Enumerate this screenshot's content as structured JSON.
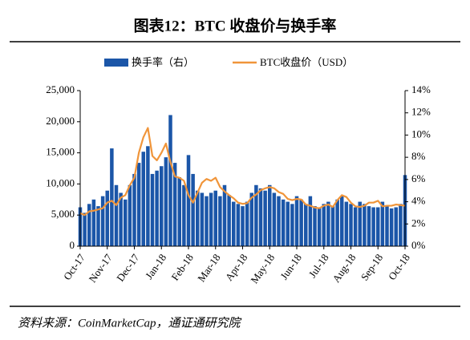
{
  "chart_data": {
    "type": "bar_line",
    "title": "图表12：BTC 收盘价与换手率",
    "source": "资料来源：CoinMarketCap，通证通研究院",
    "categories": [
      "Oct-17",
      null,
      null,
      null,
      null,
      null,
      "Nov-17",
      null,
      null,
      null,
      null,
      null,
      "Dec-17",
      null,
      null,
      null,
      null,
      null,
      "Jan-18",
      null,
      null,
      null,
      null,
      null,
      "Feb-18",
      null,
      null,
      null,
      null,
      null,
      "Mar-18",
      null,
      null,
      null,
      null,
      null,
      "Apr-18",
      null,
      null,
      null,
      null,
      null,
      "May-18",
      null,
      null,
      null,
      null,
      null,
      "Jun-18",
      null,
      null,
      null,
      null,
      null,
      "Jul-18",
      null,
      null,
      null,
      null,
      null,
      "Aug-18",
      null,
      null,
      null,
      null,
      null,
      "Sep-18",
      null,
      null,
      null,
      null,
      null,
      "Oct-18"
    ],
    "series": [
      {
        "name": "换手率（右）",
        "type": "bar",
        "axis": "y2",
        "color": "#1b56a8",
        "values": [
          3.5,
          3.0,
          3.8,
          4.2,
          3.6,
          4.5,
          5.0,
          8.8,
          5.5,
          4.8,
          4.2,
          5.5,
          6.5,
          7.5,
          8.5,
          9.0,
          6.5,
          6.8,
          7.2,
          8.0,
          11.8,
          7.5,
          6.2,
          5.5,
          8.2,
          6.5,
          5.0,
          4.8,
          4.5,
          4.8,
          5.0,
          4.5,
          5.5,
          4.6,
          4.0,
          3.8,
          3.6,
          4.0,
          4.8,
          5.5,
          5.2,
          5.0,
          5.5,
          4.8,
          4.5,
          4.2,
          4.0,
          3.8,
          4.5,
          4.2,
          3.8,
          4.5,
          3.6,
          3.5,
          3.8,
          4.0,
          3.6,
          4.2,
          4.5,
          4.0,
          3.8,
          3.5,
          4.0,
          3.8,
          3.6,
          3.5,
          3.5,
          4.0,
          3.6,
          3.4,
          3.5,
          3.8,
          6.4
        ]
      },
      {
        "name": "BTC收盘价（USD）",
        "type": "line",
        "axis": "y",
        "color": "#f0953a",
        "values": [
          5300,
          5000,
          5600,
          5700,
          5900,
          6100,
          7000,
          7300,
          6600,
          7800,
          8200,
          9800,
          11000,
          15000,
          17500,
          19000,
          14500,
          13800,
          15000,
          16500,
          13500,
          11200,
          11000,
          10500,
          8200,
          7000,
          8600,
          10200,
          10800,
          10500,
          11000,
          9500,
          8800,
          8200,
          7700,
          7000,
          6800,
          6900,
          7800,
          8300,
          9000,
          9300,
          9500,
          9300,
          8700,
          8400,
          7600,
          7400,
          7600,
          7500,
          6700,
          6500,
          6200,
          6100,
          6500,
          6700,
          6300,
          7400,
          8200,
          7900,
          7000,
          6400,
          6300,
          6500,
          7000,
          7000,
          7300,
          6400,
          6500,
          6500,
          6700,
          6600,
          6500
        ]
      }
    ],
    "ylim": [
      0,
      25000
    ],
    "yticks": [
      0,
      {
        "value": 5000,
        "label": "5,000"
      },
      {
        "value": 10000,
        "label": "10,000"
      },
      {
        "value": 15000,
        "label": "15,000"
      },
      {
        "value": 20000,
        "label": "20,000"
      },
      {
        "value": 25000,
        "label": "25,000"
      }
    ],
    "y2lim": [
      0,
      14
    ],
    "y2ticks": [
      {
        "value": 0,
        "label": "0%"
      },
      {
        "value": 2,
        "label": "2%"
      },
      {
        "value": 4,
        "label": "4%"
      },
      {
        "value": 6,
        "label": "6%"
      },
      {
        "value": 8,
        "label": "8%"
      },
      {
        "value": 10,
        "label": "10%"
      },
      {
        "value": 12,
        "label": "12%"
      },
      {
        "value": 14,
        "label": "14%"
      }
    ],
    "grid": false,
    "legend": "top"
  }
}
